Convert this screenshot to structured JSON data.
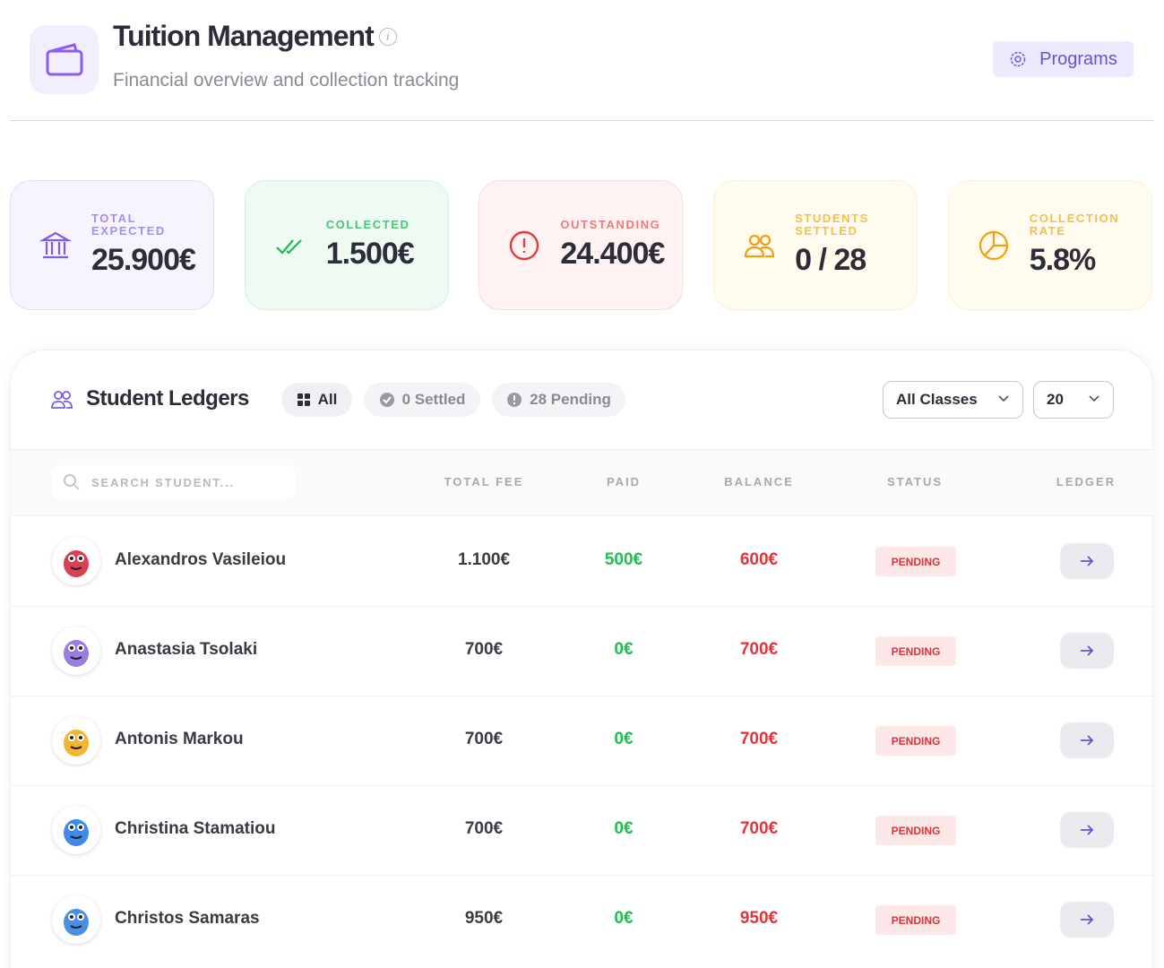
{
  "header": {
    "title": "Tuition Management",
    "subtitle": "Financial overview and collection tracking",
    "button": "Programs"
  },
  "stats": [
    {
      "label": "TOTAL EXPECTED",
      "value": "25.900€"
    },
    {
      "label": "COLLECTED",
      "value": "1.500€"
    },
    {
      "label": "OUTSTANDING",
      "value": "24.400€"
    },
    {
      "label": "STUDENTS SETTLED",
      "value": "0 / 28"
    },
    {
      "label": "COLLECTION RATE",
      "value": "5.8%"
    }
  ],
  "ledger": {
    "title": "Student Ledgers",
    "filters": [
      "All",
      "0 Settled",
      "28 Pending"
    ],
    "class_select": "All Classes",
    "page_size": "20",
    "search_placeholder": "SEARCH STUDENT...",
    "columns": [
      "TOTAL FEE",
      "PAID",
      "BALANCE",
      "STATUS",
      "LEDGER"
    ],
    "rows": [
      {
        "name": "Alexandros Vasileiou",
        "total_fee": "1.100€",
        "paid": "500€",
        "balance": "600€",
        "status": "PENDING"
      },
      {
        "name": "Anastasia Tsolaki",
        "total_fee": "700€",
        "paid": "0€",
        "balance": "700€",
        "status": "PENDING"
      },
      {
        "name": "Antonis Markou",
        "total_fee": "700€",
        "paid": "0€",
        "balance": "700€",
        "status": "PENDING"
      },
      {
        "name": "Christina Stamatiou",
        "total_fee": "700€",
        "paid": "0€",
        "balance": "700€",
        "status": "PENDING"
      },
      {
        "name": "Christos Samaras",
        "total_fee": "950€",
        "paid": "0€",
        "balance": "950€",
        "status": "PENDING"
      }
    ]
  }
}
